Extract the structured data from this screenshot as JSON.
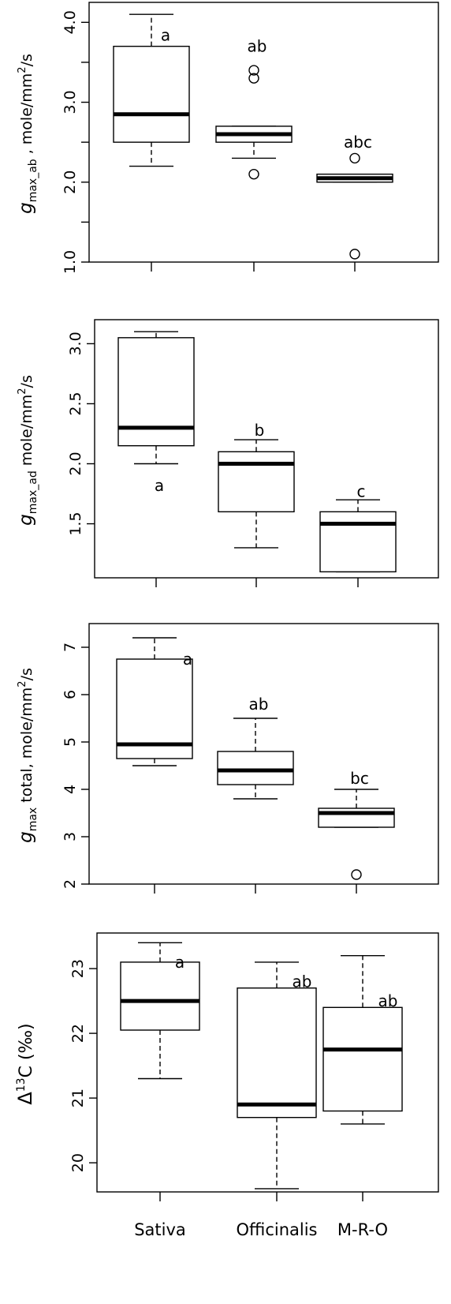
{
  "chart_data": [
    {
      "type": "box",
      "ylim": [
        1.0,
        4.25
      ],
      "yticks": [
        1.0,
        1.5,
        2.0,
        2.5,
        3.0,
        3.5,
        4.0
      ],
      "ytick_labels": [
        "1.0",
        "",
        "2.0",
        "",
        "3.0",
        "",
        "4.0"
      ],
      "ylabel": {
        "sym": "g",
        "sub": "max_ab",
        "text": " , mole/mm",
        "sup": "2",
        "tail": "/s"
      },
      "categories": [
        "Sativa",
        "Officinalis",
        "M-R-O"
      ],
      "boxes": [
        {
          "whisker_low": 2.2,
          "q1": 2.5,
          "median": 2.85,
          "q3": 3.7,
          "whisker_high": 4.1,
          "outliers": [],
          "letter": "a",
          "letter_y": 3.84
        },
        {
          "whisker_low": 2.3,
          "q1": 2.5,
          "median": 2.6,
          "q3": 2.7,
          "whisker_high": 2.7,
          "outliers": [
            2.1,
            3.3,
            3.4
          ],
          "letter": "ab",
          "letter_y": 3.7
        },
        {
          "whisker_low": 2.0,
          "q1": 2.0,
          "median": 2.05,
          "q3": 2.1,
          "whisker_high": 2.1,
          "outliers": [
            1.1,
            2.3
          ],
          "letter": "abc",
          "letter_y": 2.5
        }
      ]
    },
    {
      "type": "box",
      "ylim": [
        1.05,
        3.2
      ],
      "yticks": [
        1.5,
        2.0,
        2.5,
        3.0
      ],
      "ytick_labels": [
        "1.5",
        "2.0",
        "2.5",
        "3.0"
      ],
      "ylabel": {
        "sym": "g",
        "sub": "max_ad",
        "text": "  mole/mm",
        "sup": "2",
        "tail": "/s"
      },
      "categories": [
        "Sativa",
        "Officinalis",
        "M-R-O"
      ],
      "boxes": [
        {
          "whisker_low": 2.0,
          "q1": 2.15,
          "median": 2.3,
          "q3": 3.05,
          "whisker_high": 3.1,
          "outliers": [],
          "letter": "a",
          "letter_y": 1.82
        },
        {
          "whisker_low": 1.3,
          "q1": 1.6,
          "median": 2.0,
          "q3": 2.1,
          "whisker_high": 2.2,
          "outliers": [],
          "letter": "b",
          "letter_y": 2.28
        },
        {
          "whisker_low": 1.1,
          "q1": 1.1,
          "median": 1.5,
          "q3": 1.6,
          "whisker_high": 1.7,
          "outliers": [],
          "letter": "c",
          "letter_y": 1.77
        }
      ]
    },
    {
      "type": "box",
      "ylim": [
        2.0,
        7.5
      ],
      "yticks": [
        2,
        3,
        4,
        5,
        6,
        7
      ],
      "ytick_labels": [
        "2",
        "3",
        "4",
        "5",
        "6",
        "7"
      ],
      "ylabel": {
        "sym": "g",
        "sub": "max",
        "text": " total, mole/mm",
        "sup": "2",
        "tail": "/s"
      },
      "categories": [
        "Sativa",
        "Officinalis",
        "M-R-O"
      ],
      "boxes": [
        {
          "whisker_low": 4.5,
          "q1": 4.65,
          "median": 4.95,
          "q3": 6.75,
          "whisker_high": 7.2,
          "outliers": [],
          "letter": "a",
          "letter_y": 6.75
        },
        {
          "whisker_low": 3.8,
          "q1": 4.1,
          "median": 4.4,
          "q3": 4.8,
          "whisker_high": 5.5,
          "outliers": [],
          "letter": "ab",
          "letter_y": 5.8
        },
        {
          "whisker_low": 3.2,
          "q1": 3.2,
          "median": 3.5,
          "q3": 3.6,
          "whisker_high": 4.0,
          "outliers": [
            2.2
          ],
          "letter": "bc",
          "letter_y": 4.23
        }
      ]
    },
    {
      "type": "box",
      "ylim": [
        19.55,
        23.55
      ],
      "yticks": [
        20,
        21,
        22,
        23
      ],
      "ytick_labels": [
        "20",
        "21",
        "22",
        "23"
      ],
      "ylabel": {
        "sym": "Δ",
        "sup0": "13",
        "text": "C (‰)"
      },
      "categories": [
        "Sativa",
        "Officinalis",
        "M-R-O"
      ],
      "show_category_labels": true,
      "boxes": [
        {
          "whisker_low": 21.3,
          "q1": 22.05,
          "median": 22.5,
          "q3": 23.1,
          "whisker_high": 23.4,
          "outliers": [],
          "letter": "a",
          "letter_y": 23.1
        },
        {
          "whisker_low": 19.6,
          "q1": 20.7,
          "median": 20.9,
          "q3": 22.7,
          "whisker_high": 23.1,
          "outliers": [],
          "letter": "ab",
          "letter_y": 22.8
        },
        {
          "whisker_low": 20.6,
          "q1": 20.8,
          "median": 21.75,
          "q3": 22.4,
          "whisker_high": 23.2,
          "outliers": [],
          "letter": "ab",
          "letter_y": 22.5
        }
      ]
    }
  ]
}
